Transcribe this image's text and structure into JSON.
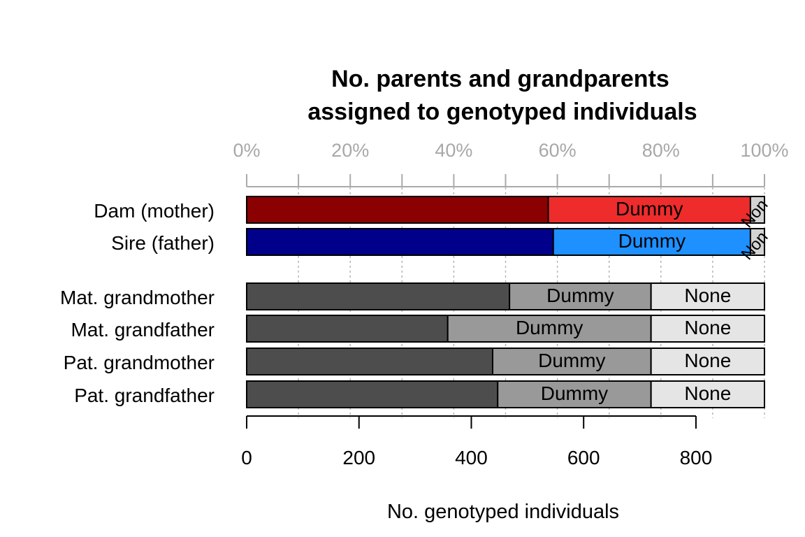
{
  "chart_data": {
    "type": "bar",
    "orientation": "horizontal",
    "stacked": true,
    "title_lines": [
      "No. parents and grandparents",
      "assigned to genotyped individuals"
    ],
    "xlabel": "No. genotyped individuals",
    "xlim": [
      0,
      922
    ],
    "bottom_ticks": [
      "0",
      "200",
      "400",
      "600",
      "800"
    ],
    "bottom_tick_values": [
      0,
      200,
      400,
      600,
      800
    ],
    "top_ticks": [
      "0%",
      "20%",
      "40%",
      "60%",
      "80%",
      "100%"
    ],
    "top_tick_values": [
      0,
      20,
      40,
      60,
      80,
      100
    ],
    "grid": "dotted vertical at each 10%",
    "categories": [
      "Dam (mother)",
      "Sire (father)",
      "Mat. grandmother",
      "Mat. grandfather",
      "Pat. grandmother",
      "Pat. grandfather"
    ],
    "segment_labels": [
      "",
      "Dummy",
      "None"
    ],
    "rows": [
      {
        "label": "Dam (mother)",
        "values": [
          537,
          360,
          25
        ],
        "colors": [
          "#8B0000",
          "#EE2C2C",
          "#D3D3D3"
        ],
        "none_label": "None"
      },
      {
        "label": "Sire (father)",
        "values": [
          546,
          351,
          25
        ],
        "colors": [
          "#00008B",
          "#1E90FF",
          "#D3D3D3"
        ],
        "none_label": "None"
      },
      {
        "label": "Mat. grandmother",
        "values": [
          468,
          252,
          202
        ],
        "colors": [
          "#4D4D4D",
          "#999999",
          "#E5E5E5"
        ],
        "none_label": "None"
      },
      {
        "label": "Mat. grandfather",
        "values": [
          358,
          362,
          202
        ],
        "colors": [
          "#4D4D4D",
          "#999999",
          "#E5E5E5"
        ],
        "none_label": "None"
      },
      {
        "label": "Pat. grandmother",
        "values": [
          438,
          282,
          202
        ],
        "colors": [
          "#4D4D4D",
          "#999999",
          "#E5E5E5"
        ],
        "none_label": "None"
      },
      {
        "label": "Pat. grandfather",
        "values": [
          447,
          273,
          202
        ],
        "colors": [
          "#4D4D4D",
          "#999999",
          "#E5E5E5"
        ],
        "none_label": "None"
      }
    ]
  }
}
